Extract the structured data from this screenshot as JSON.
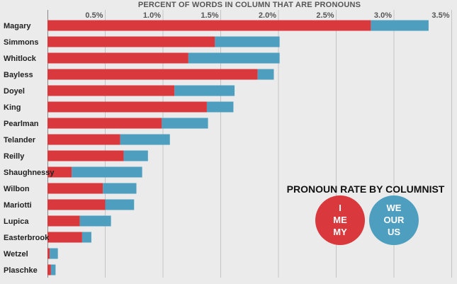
{
  "chart_data": {
    "type": "bar",
    "orientation": "horizontal",
    "stacked": true,
    "title": "PERCENT OF WORDS IN COLUMN THAT ARE PRONOUNS",
    "xlim": [
      0,
      3.5
    ],
    "x_ticks": [
      0.5,
      1.0,
      1.5,
      2.0,
      2.5,
      3.0,
      3.5
    ],
    "x_tick_labels": [
      "0.5%",
      "1.0%",
      "1.5%",
      "2.0%",
      "2.5%",
      "3.0%",
      "3.5%"
    ],
    "categories": [
      "Magary",
      "Simmons",
      "Whitlock",
      "Bayless",
      "Doyel",
      "King",
      "Pearlman",
      "Telander",
      "Reilly",
      "Shaughnessy",
      "Wilbon",
      "Mariotti",
      "Lupica",
      "Easterbrook",
      "Wetzel",
      "Plaschke"
    ],
    "series": [
      {
        "name": "I / ME / MY",
        "color": "#d9383d",
        "values": [
          2.8,
          1.45,
          1.22,
          1.82,
          1.1,
          1.38,
          0.99,
          0.63,
          0.66,
          0.21,
          0.48,
          0.5,
          0.28,
          0.3,
          0.02,
          0.03
        ]
      },
      {
        "name": "WE / OUR / US",
        "color": "#4e9fbf",
        "values": [
          0.5,
          0.56,
          0.79,
          0.14,
          0.52,
          0.23,
          0.4,
          0.43,
          0.21,
          0.61,
          0.29,
          0.25,
          0.27,
          0.08,
          0.07,
          0.04
        ]
      }
    ],
    "legend": {
      "title": "PRONOUN RATE BY COLUMNIST",
      "position": "bottom-right",
      "items": [
        {
          "lines": [
            "I",
            "ME",
            "MY"
          ],
          "color": "#d9383d"
        },
        {
          "lines": [
            "WE",
            "OUR",
            "US"
          ],
          "color": "#4e9fbf"
        }
      ]
    }
  }
}
